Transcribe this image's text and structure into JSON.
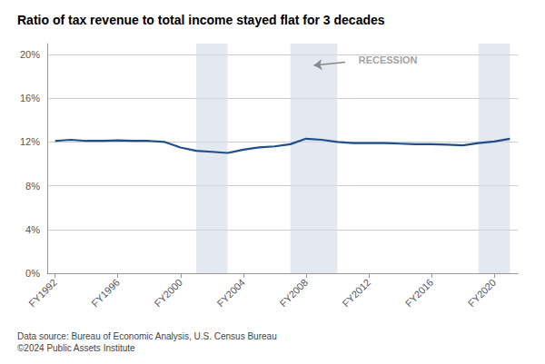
{
  "chart_data": {
    "type": "line",
    "title": "Ratio of tax revenue to total income stayed flat for 3 decades",
    "source": "Data source: Bureau of Economic Analysis, U.S. Census Bureau\n©2024 Public Assets Institute",
    "x": [
      1992,
      1993,
      1994,
      1995,
      1996,
      1997,
      1998,
      1999,
      2000,
      2001,
      2002,
      2003,
      2004,
      2005,
      2006,
      2007,
      2008,
      2009,
      2010,
      2011,
      2012,
      2013,
      2014,
      2015,
      2016,
      2017,
      2018,
      2019,
      2020,
      2021
    ],
    "values": [
      12.1,
      12.2,
      12.1,
      12.1,
      12.15,
      12.1,
      12.1,
      12.0,
      11.5,
      11.2,
      11.1,
      11.0,
      11.3,
      11.5,
      11.6,
      11.8,
      12.3,
      12.2,
      12.0,
      11.9,
      11.9,
      11.9,
      11.85,
      11.8,
      11.8,
      11.75,
      11.7,
      11.9,
      12.05,
      12.3
    ],
    "color": "#1f4e8c",
    "xlim": [
      1991.5,
      2021.5
    ],
    "xticks": [
      {
        "value": 1992,
        "label": "FY1992"
      },
      {
        "value": 1996,
        "label": "FY1996"
      },
      {
        "value": 2000,
        "label": "FY2000"
      },
      {
        "value": 2004,
        "label": "FY2004"
      },
      {
        "value": 2008,
        "label": "FY2008"
      },
      {
        "value": 2012,
        "label": "FY2012"
      },
      {
        "value": 2016,
        "label": "FY2016"
      },
      {
        "value": 2020,
        "label": "FY2020"
      }
    ],
    "ylim": [
      0,
      21
    ],
    "yticks": [
      {
        "value": 0,
        "label": "0%"
      },
      {
        "value": 4,
        "label": "4%"
      },
      {
        "value": 8,
        "label": "8%"
      },
      {
        "value": 12,
        "label": "12%"
      },
      {
        "value": 16,
        "label": "16%"
      },
      {
        "value": 20,
        "label": "20%"
      }
    ],
    "grid": true,
    "recession_bands": {
      "color": "#d0d8e8",
      "ranges": [
        {
          "start": 2001,
          "end": 2003
        },
        {
          "start": 2007,
          "end": 2010
        },
        {
          "start": 2019,
          "end": 2021
        }
      ]
    },
    "annotations": [
      {
        "text": "RECESSION",
        "x": 2011,
        "y": 19.5,
        "arrow_from": [
          2010.5,
          19.3
        ],
        "arrow_to": [
          2008.5,
          19.0
        ]
      }
    ]
  }
}
